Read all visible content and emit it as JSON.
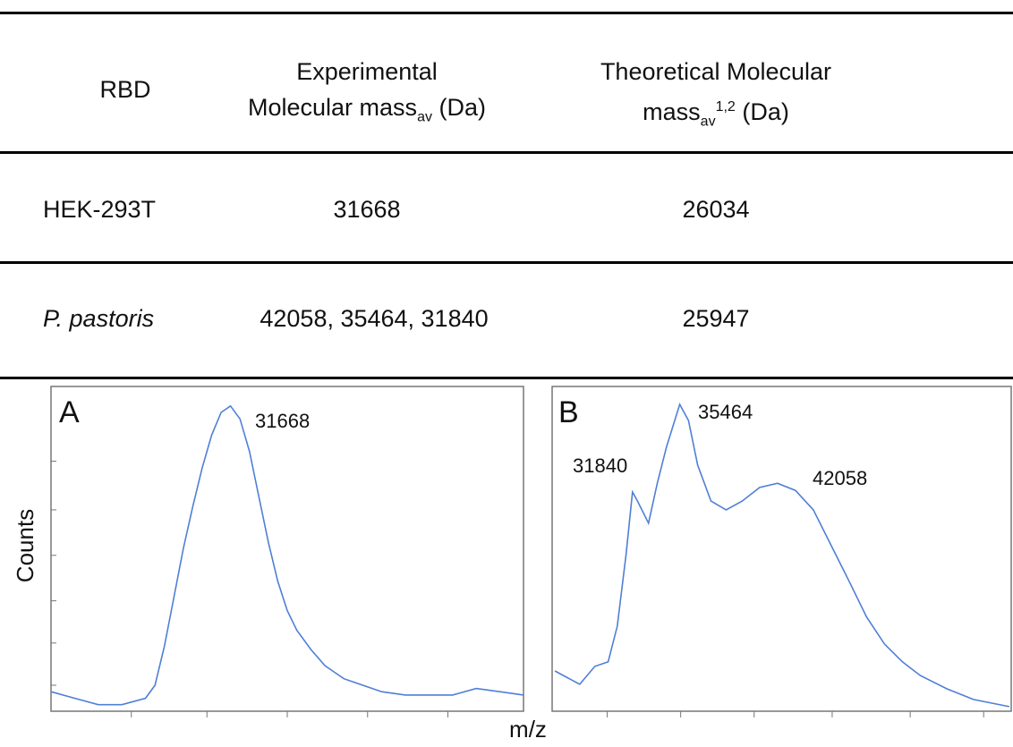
{
  "table": {
    "header": {
      "rbd": "RBD",
      "experimental": {
        "line1": "Experimental",
        "line2": "Molecular mass",
        "sub": "av",
        "tail": "(Da)"
      },
      "theoretical": {
        "line1": "Theoretical Molecular",
        "line2": "mass",
        "sub": "av",
        "sup": "1,2",
        "tail": "(Da)"
      }
    },
    "rows": [
      [
        "HEK-293T",
        "31668",
        "26034"
      ],
      [
        "P. pastoris",
        "42058, 35464, 31840",
        "25947"
      ]
    ]
  },
  "figure": {
    "ylabel": "Counts",
    "xlabel": "m/z"
  },
  "chart_data": [
    {
      "type": "line",
      "label": "A",
      "color": "#4f7fd6",
      "xlim": [
        0,
        100
      ],
      "ylim": [
        0,
        100
      ],
      "xticks": [
        17,
        33,
        50,
        67,
        84
      ],
      "yticks": [
        8,
        21,
        34,
        48,
        62,
        77
      ],
      "x": [
        0,
        5,
        10,
        15,
        20,
        22,
        24,
        26,
        28,
        30,
        32,
        34,
        36,
        38,
        40,
        42,
        44,
        46,
        48,
        50,
        52,
        55,
        58,
        62,
        66,
        70,
        75,
        80,
        85,
        90,
        95,
        100
      ],
      "values": [
        6,
        4,
        2,
        2,
        4,
        8,
        20,
        35,
        50,
        63,
        75,
        85,
        92,
        94,
        90,
        80,
        66,
        52,
        40,
        31,
        25,
        19,
        14,
        10,
        8,
        6,
        5,
        5,
        5,
        7,
        6,
        5
      ],
      "annotations": [
        "31668"
      ]
    },
    {
      "type": "line",
      "label": "B",
      "color": "#4f7fd6",
      "xlim": [
        0,
        100
      ],
      "ylim": [
        0,
        100
      ],
      "xticks": [
        12,
        28,
        44,
        61,
        78,
        94
      ],
      "yticks": [],
      "x": [
        0.6,
        6,
        9.3,
        12.2,
        14.2,
        16.1,
        17.5,
        18.6,
        21,
        22.9,
        24.9,
        27.8,
        29.7,
        31.7,
        34.6,
        37.9,
        41.4,
        45.2,
        49.1,
        53,
        56.9,
        60.8,
        64.7,
        68.5,
        72.4,
        76.3,
        80.2,
        86,
        91.8,
        99.6
      ],
      "values": [
        12.4,
        8.3,
        13.8,
        15.2,
        26.2,
        48.2,
        67.5,
        64.7,
        57.9,
        70.2,
        81.3,
        94.5,
        89.5,
        75.8,
        64.7,
        62,
        64.7,
        68.9,
        70.2,
        68,
        62,
        51,
        40,
        29,
        20.7,
        15.2,
        11,
        6.9,
        3.6,
        1.4
      ],
      "annotations": [
        "31840",
        "35464",
        "42058"
      ]
    }
  ]
}
